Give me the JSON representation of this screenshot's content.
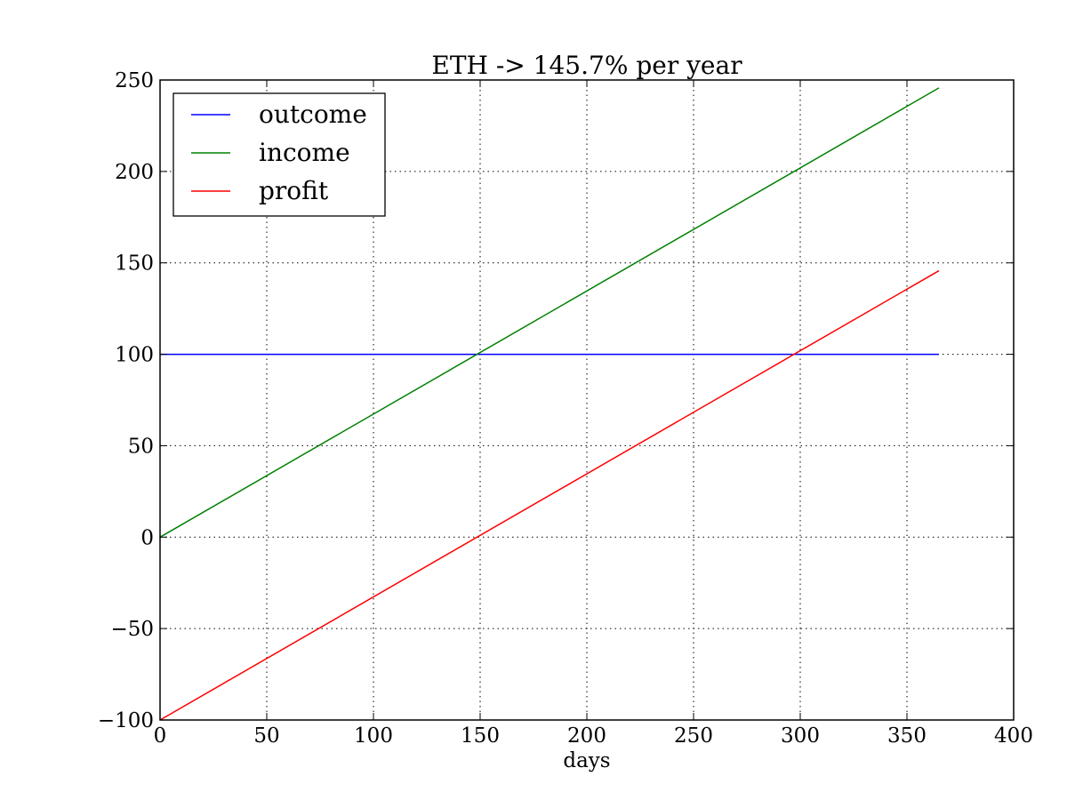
{
  "chart_data": {
    "type": "line",
    "title": "ETH -> 145.7% per year",
    "xlabel": "days",
    "ylabel": "",
    "xlim": [
      0,
      400
    ],
    "ylim": [
      -100,
      250
    ],
    "xticks": [
      0,
      50,
      100,
      150,
      200,
      250,
      300,
      350,
      400
    ],
    "yticks": [
      -100,
      -50,
      0,
      50,
      100,
      150,
      200,
      250
    ],
    "xtick_labels": [
      "0",
      "50",
      "100",
      "150",
      "200",
      "250",
      "300",
      "350",
      "400"
    ],
    "ytick_labels": [
      "−100",
      "−50",
      "0",
      "50",
      "100",
      "150",
      "200",
      "250"
    ],
    "grid": true,
    "legend_position": "top-left",
    "series": [
      {
        "name": "outcome",
        "color": "#0000ff",
        "x": [
          0,
          365
        ],
        "y": [
          100,
          100
        ]
      },
      {
        "name": "income",
        "color": "#008000",
        "x": [
          0,
          365
        ],
        "y": [
          0,
          245.7
        ]
      },
      {
        "name": "profit",
        "color": "#ff0000",
        "x": [
          0,
          365
        ],
        "y": [
          -100,
          145.7
        ]
      }
    ]
  }
}
